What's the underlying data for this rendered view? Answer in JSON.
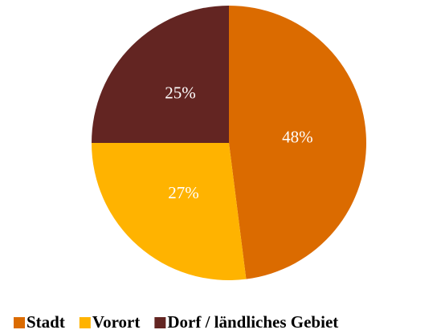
{
  "chart_data": {
    "type": "pie",
    "categories": [
      "Stadt",
      "Vorort",
      "Dorf / ländliches Gebiet"
    ],
    "values": [
      48,
      27,
      25
    ],
    "value_labels": [
      "48%",
      "27%",
      "25%"
    ],
    "colors": [
      "#db6b00",
      "#ffb300",
      "#632522"
    ],
    "legend": "bottom"
  }
}
